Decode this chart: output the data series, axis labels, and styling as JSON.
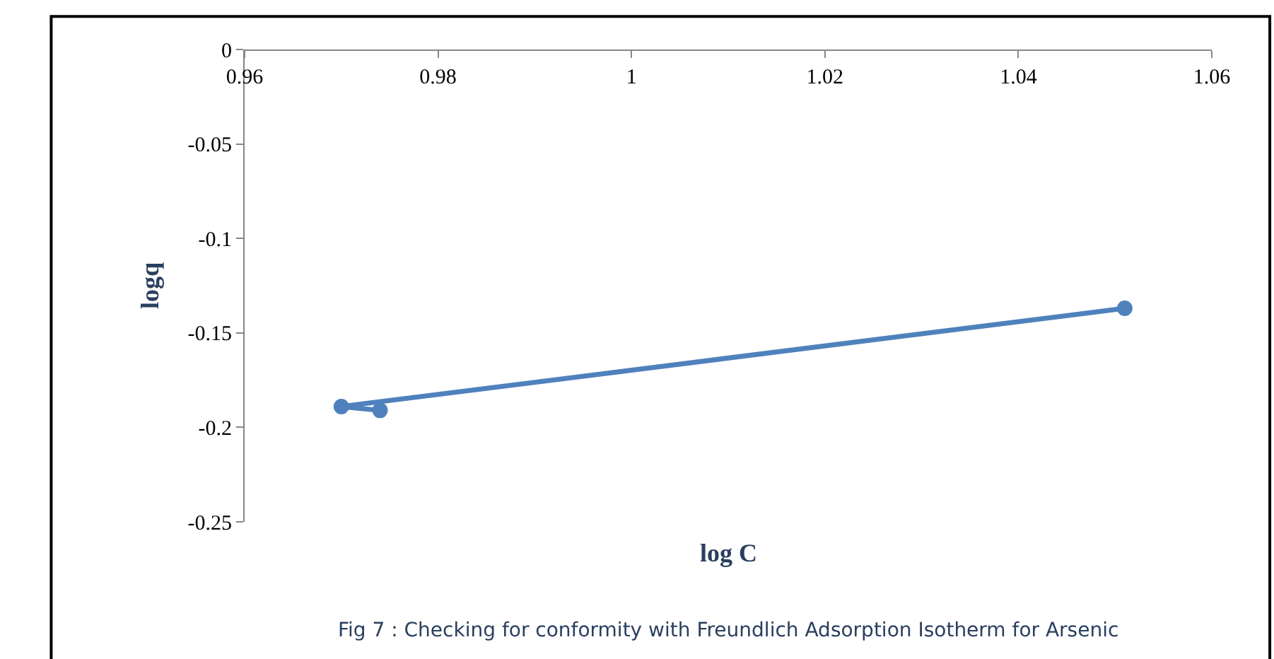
{
  "chart_data": {
    "type": "line",
    "xlabel": "log C",
    "ylabel": "logq",
    "x": [
      0.974,
      0.97,
      1.051
    ],
    "series": [
      {
        "color": "#4f81bd",
        "values": [
          -0.191,
          -0.189,
          -0.137
        ]
      }
    ],
    "xlim": [
      0.96,
      1.06
    ],
    "xticks": [
      0.96,
      0.98,
      1,
      1.02,
      1.04,
      1.06
    ],
    "ylim": [
      -0.25,
      0
    ],
    "yticks": [
      0,
      -0.05,
      -0.1,
      -0.15,
      -0.2,
      -0.25
    ],
    "marker": "circle",
    "grid": false,
    "legend": false,
    "annotations": [
      "Fig 7 : Checking for conformity with Freundlich Adsorption Isotherm for Arsenic"
    ]
  }
}
